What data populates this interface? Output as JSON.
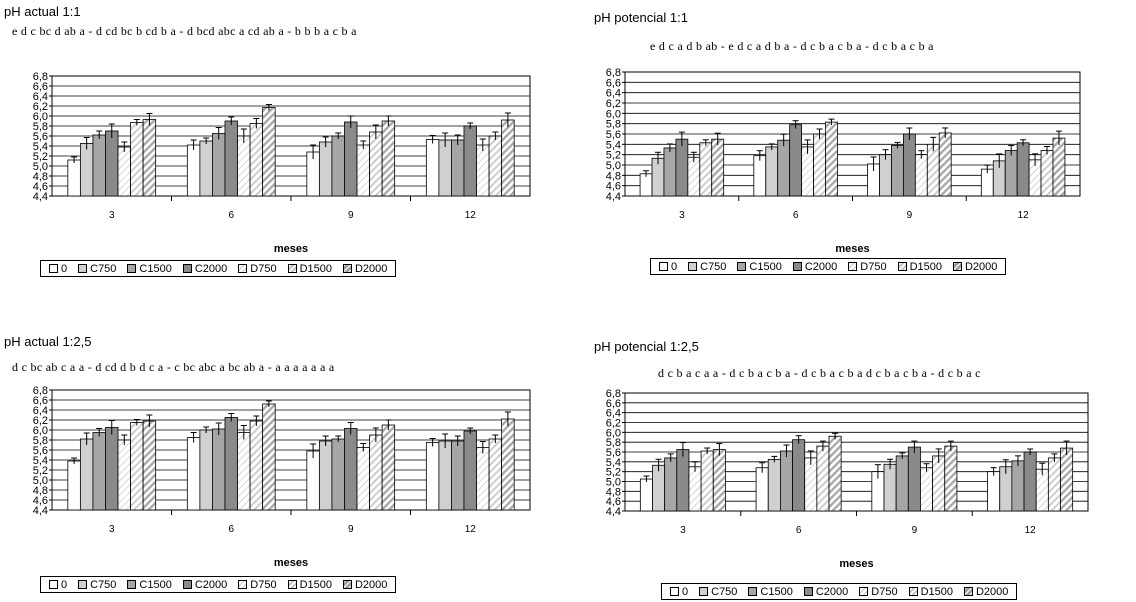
{
  "panels": [
    {
      "title": "pH actual 1:1",
      "sig": "e d c bc d ab a - d cd bc b cd b a - d bcd abc a cd ab a - b b b a c b a",
      "xlabel": "meses",
      "y_ticks": [
        "6,8",
        "6,6",
        "6,4",
        "6,2",
        "6,0",
        "5,8",
        "5,6",
        "5,4",
        "5,2",
        "5,0",
        "4,8",
        "4,6",
        "4,4"
      ],
      "x_ticks": [
        "3",
        "6",
        "9",
        "12"
      ],
      "legend": [
        "0",
        "C750",
        "C1500",
        "C2000",
        "D750",
        "D1500",
        "D2000"
      ]
    },
    {
      "title": "pH potencial 1:1",
      "sig": "e d c a d b ab - e d c a d b a   -   d c b a c b a   -   d c b a c b a",
      "xlabel": "meses",
      "y_ticks": [
        "6,8",
        "6,6",
        "6,4",
        "6,2",
        "6,0",
        "5,8",
        "5,6",
        "5,4",
        "5,2",
        "5,0",
        "4,8",
        "4,6",
        "4,4"
      ],
      "x_ticks": [
        "3",
        "6",
        "9",
        "12"
      ],
      "legend": [
        "0",
        "C750",
        "C1500",
        "C2000",
        "D750",
        "D1500",
        "D2000"
      ]
    },
    {
      "title": "pH actual 1:2,5",
      "sig": "d c bc ab c a a - d cd d b d c a - c bc abc a bc ab a - a a a a a a a",
      "xlabel": "meses",
      "y_ticks": [
        "6,8",
        "6,6",
        "6,4",
        "6,2",
        "6,0",
        "5,8",
        "5,6",
        "5,4",
        "5,2",
        "5,0",
        "4,8",
        "4,6",
        "4,4"
      ],
      "x_ticks": [
        "3",
        "6",
        "9",
        "12"
      ],
      "legend": [
        "0",
        "C750",
        "C1500",
        "C2000",
        "D750",
        "D1500",
        "D2000"
      ]
    },
    {
      "title": "pH potencial 1:2,5",
      "sig": "d c b a c a a   -   d c b a c b a   -  d c b a c b a  d c b a c b a - d c b a c",
      "xlabel": "meses",
      "y_ticks": [
        "6,8",
        "6,6",
        "6,4",
        "6,2",
        "6,0",
        "5,8",
        "5,6",
        "5,4",
        "5,2",
        "5,0",
        "4,8",
        "4,6",
        "4,4"
      ],
      "x_ticks": [
        "3",
        "6",
        "9",
        "12"
      ],
      "legend": [
        "0",
        "C750",
        "C1500",
        "C2000",
        "D750",
        "D1500",
        "D2000"
      ]
    }
  ],
  "colors": {
    "0": "#ffffff",
    "C750": "#d0d0d0",
    "C1500": "#a6a6a6",
    "C2000": "#8a8a8a",
    "D750": "#ffffff",
    "D1500": "#e6e6e6",
    "D2000": "#c8c8c8"
  },
  "chart_data": [
    {
      "type": "bar",
      "title": "pH actual 1:1",
      "xlabel": "meses",
      "categories": [
        "3",
        "6",
        "9",
        "12"
      ],
      "ylim": [
        4.4,
        6.8
      ],
      "series": [
        {
          "name": "0",
          "values": [
            5.12,
            5.42,
            5.28,
            5.53
          ]
        },
        {
          "name": "C750",
          "values": [
            5.45,
            5.5,
            5.48,
            5.52
          ]
        },
        {
          "name": "C1500",
          "values": [
            5.62,
            5.65,
            5.6,
            5.52
          ]
        },
        {
          "name": "C2000",
          "values": [
            5.7,
            5.9,
            5.88,
            5.8
          ]
        },
        {
          "name": "D750",
          "values": [
            5.38,
            5.6,
            5.42,
            5.42
          ]
        },
        {
          "name": "D1500",
          "values": [
            5.87,
            5.85,
            5.68,
            5.6
          ]
        },
        {
          "name": "D2000",
          "values": [
            5.93,
            6.17,
            5.9,
            5.92
          ]
        }
      ]
    },
    {
      "type": "bar",
      "title": "pH potencial 1:1",
      "xlabel": "meses",
      "categories": [
        "3",
        "6",
        "9",
        "12"
      ],
      "ylim": [
        4.4,
        6.8
      ],
      "series": [
        {
          "name": "0",
          "values": [
            4.83,
            5.18,
            5.02,
            4.92
          ]
        },
        {
          "name": "C750",
          "values": [
            5.13,
            5.35,
            5.2,
            5.08
          ]
        },
        {
          "name": "C1500",
          "values": [
            5.33,
            5.48,
            5.38,
            5.28
          ]
        },
        {
          "name": "C2000",
          "values": [
            5.5,
            5.78,
            5.6,
            5.43
          ]
        },
        {
          "name": "D750",
          "values": [
            5.15,
            5.35,
            5.2,
            5.1
          ]
        },
        {
          "name": "D1500",
          "values": [
            5.43,
            5.6,
            5.4,
            5.28
          ]
        },
        {
          "name": "D2000",
          "values": [
            5.5,
            5.83,
            5.62,
            5.52
          ]
        }
      ]
    },
    {
      "type": "bar",
      "title": "pH actual 1:2,5",
      "xlabel": "meses",
      "categories": [
        "3",
        "6",
        "9",
        "12"
      ],
      "ylim": [
        4.4,
        6.8
      ],
      "series": [
        {
          "name": "0",
          "values": [
            5.38,
            5.85,
            5.58,
            5.75
          ]
        },
        {
          "name": "C750",
          "values": [
            5.82,
            6.0,
            5.78,
            5.78
          ]
        },
        {
          "name": "C1500",
          "values": [
            5.95,
            6.02,
            5.82,
            5.78
          ]
        },
        {
          "name": "C2000",
          "values": [
            6.05,
            6.25,
            6.03,
            5.98
          ]
        },
        {
          "name": "D750",
          "values": [
            5.8,
            5.95,
            5.65,
            5.65
          ]
        },
        {
          "name": "D1500",
          "values": [
            6.15,
            6.18,
            5.9,
            5.82
          ]
        },
        {
          "name": "D2000",
          "values": [
            6.18,
            6.52,
            6.1,
            6.22
          ]
        }
      ]
    },
    {
      "type": "bar",
      "title": "pH potencial 1:2,5",
      "xlabel": "meses",
      "categories": [
        "3",
        "6",
        "9",
        "12"
      ],
      "ylim": [
        4.4,
        6.8
      ],
      "series": [
        {
          "name": "0",
          "values": [
            5.05,
            5.28,
            5.2,
            5.2
          ]
        },
        {
          "name": "C750",
          "values": [
            5.33,
            5.45,
            5.35,
            5.3
          ]
        },
        {
          "name": "C1500",
          "values": [
            5.48,
            5.62,
            5.52,
            5.42
          ]
        },
        {
          "name": "C2000",
          "values": [
            5.65,
            5.85,
            5.7,
            5.6
          ]
        },
        {
          "name": "D750",
          "values": [
            5.3,
            5.48,
            5.28,
            5.25
          ]
        },
        {
          "name": "D1500",
          "values": [
            5.62,
            5.72,
            5.52,
            5.48
          ]
        },
        {
          "name": "D2000",
          "values": [
            5.65,
            5.92,
            5.72,
            5.68
          ]
        }
      ]
    }
  ]
}
